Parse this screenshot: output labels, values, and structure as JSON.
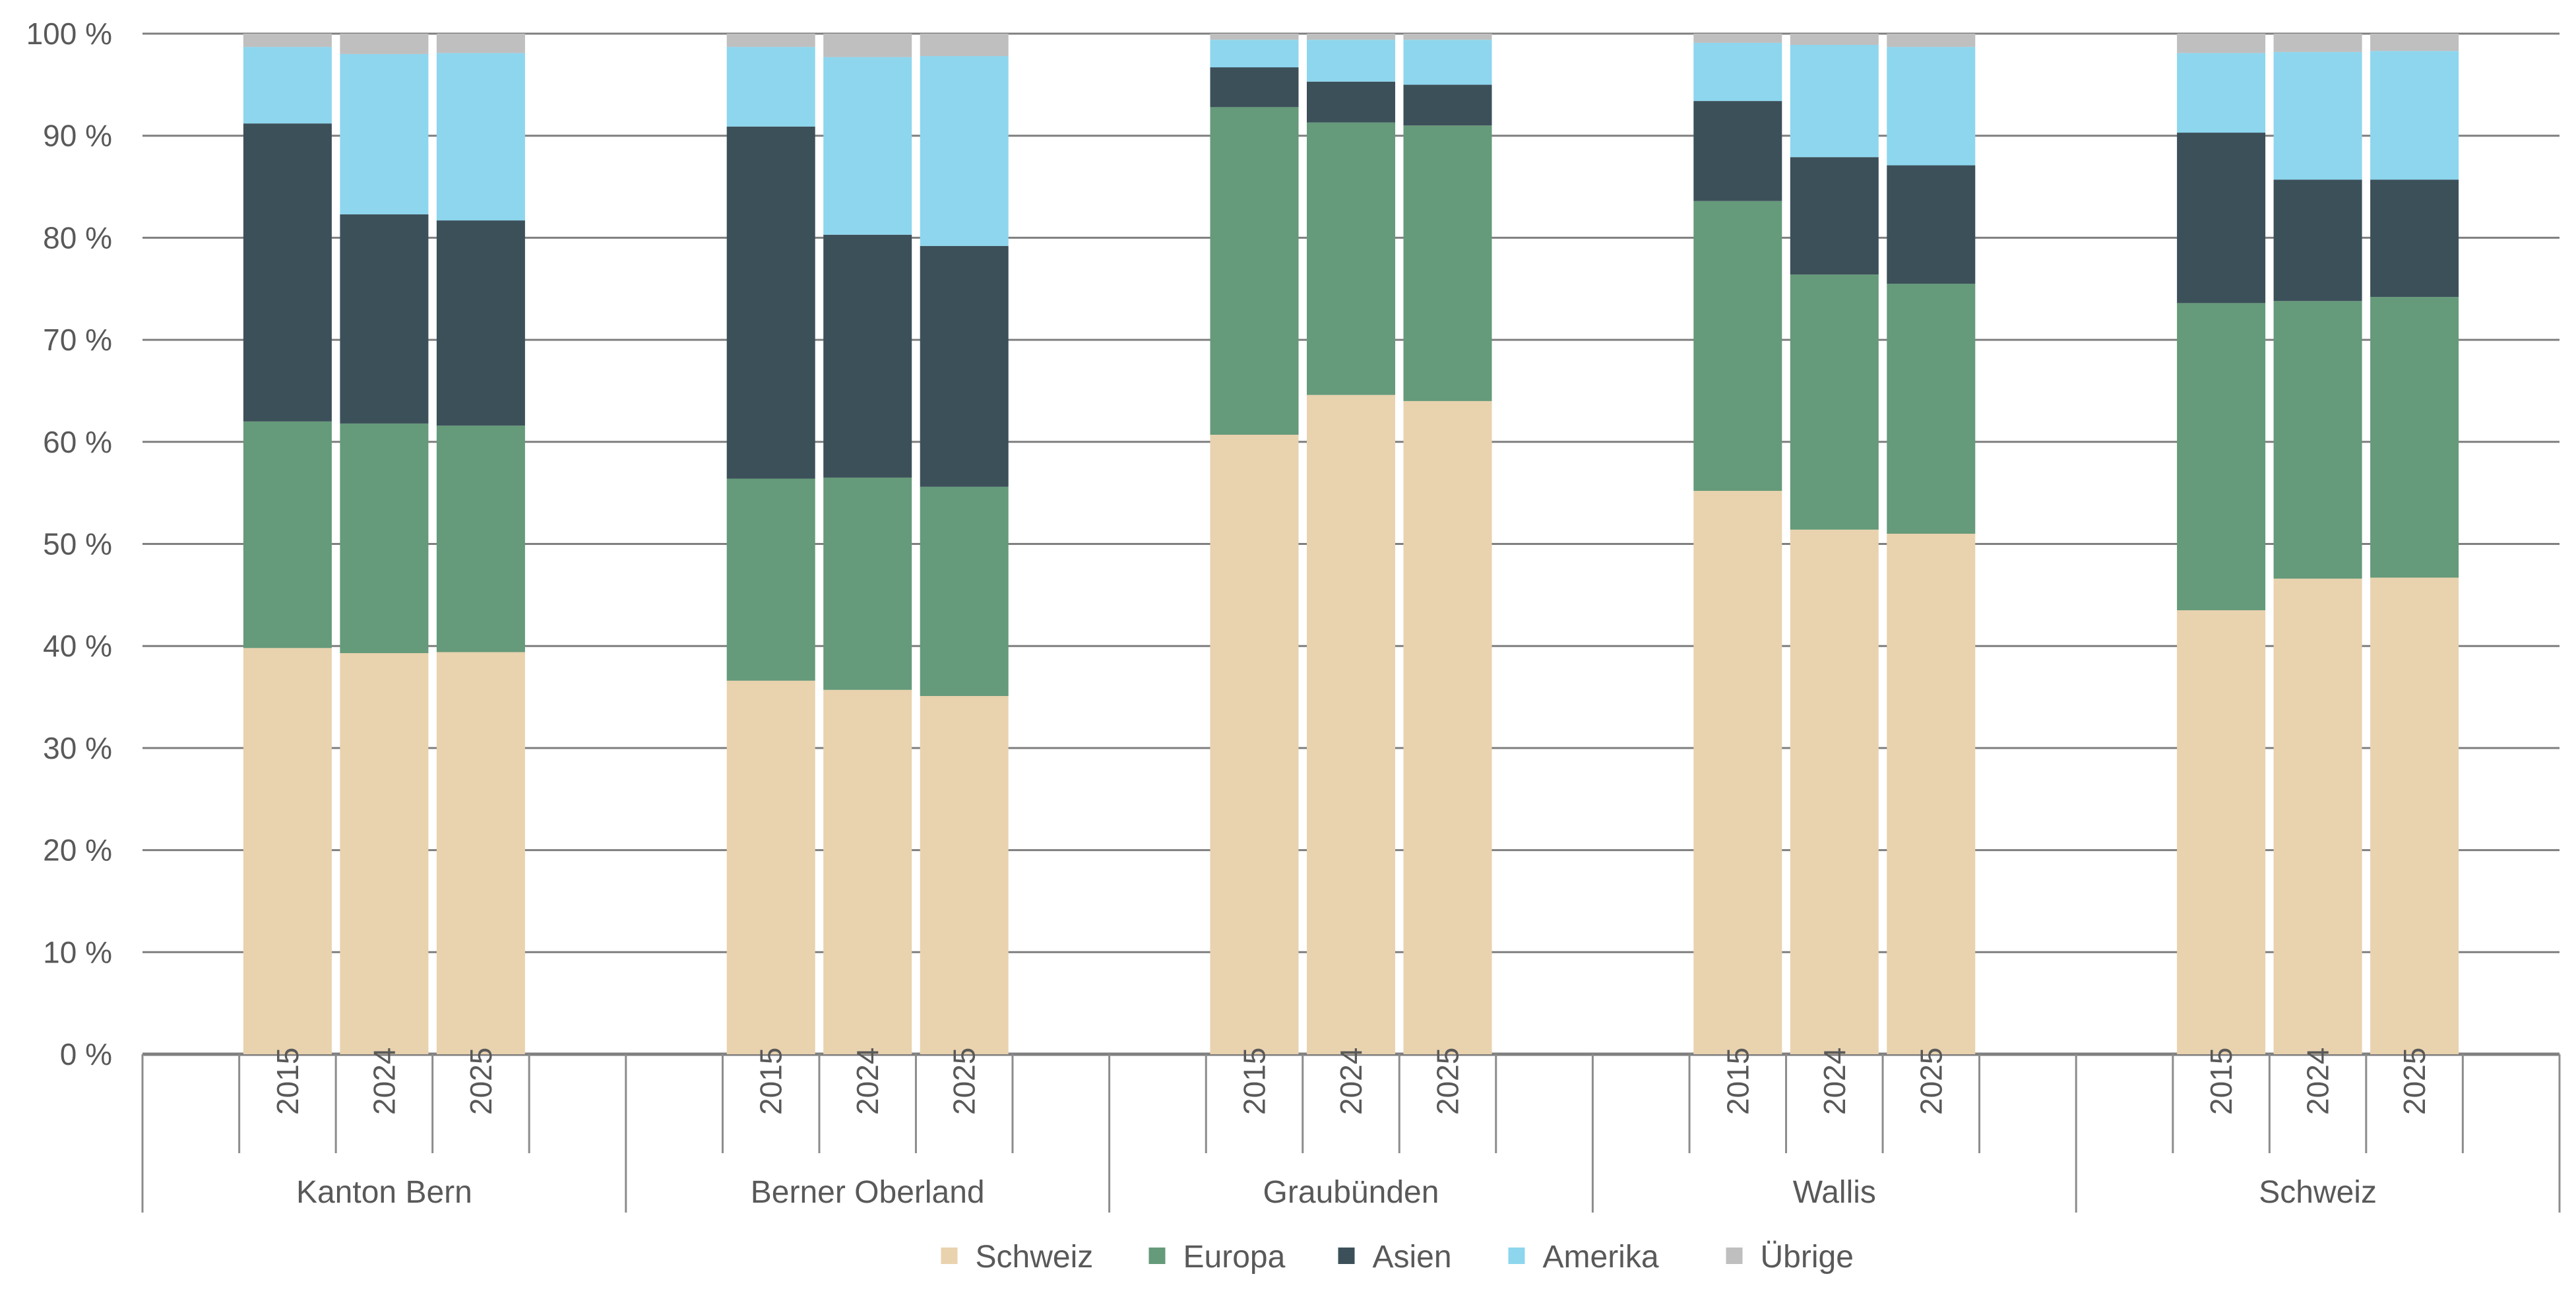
{
  "chart_data": {
    "type": "bar",
    "stacked": true,
    "normalized": true,
    "title": "",
    "xlabel": "",
    "ylabel": "",
    "ylim": [
      0,
      100
    ],
    "y_ticks": [
      0,
      10,
      20,
      30,
      40,
      50,
      60,
      70,
      80,
      90,
      100
    ],
    "y_tick_suffix": " %",
    "grid": true,
    "legend_position": "bottom",
    "groups": [
      {
        "label": "Kanton Bern",
        "years": [
          "2015",
          "2024",
          "2025"
        ]
      },
      {
        "label": "Berner Oberland",
        "years": [
          "2015",
          "2024",
          "2025"
        ]
      },
      {
        "label": "Graubünden",
        "years": [
          "2015",
          "2024",
          "2025"
        ]
      },
      {
        "label": "Wallis",
        "years": [
          "2015",
          "2024",
          "2025"
        ]
      },
      {
        "label": "Schweiz",
        "years": [
          "2015",
          "2024",
          "2025"
        ]
      }
    ],
    "categories": [
      "Kanton Bern 2015",
      "Kanton Bern 2024",
      "Kanton Bern 2025",
      "Berner Oberland 2015",
      "Berner Oberland 2024",
      "Berner Oberland 2025",
      "Graubünden 2015",
      "Graubünden 2024",
      "Graubünden 2025",
      "Wallis 2015",
      "Wallis 2024",
      "Wallis 2025",
      "Schweiz 2015",
      "Schweiz 2024",
      "Schweiz 2025"
    ],
    "series": [
      {
        "name": "Schweiz",
        "color": "#E9D2AE",
        "values": [
          39.8,
          39.3,
          39.4,
          36.6,
          35.7,
          35.1,
          60.7,
          64.6,
          64.0,
          55.2,
          51.4,
          51.0,
          43.5,
          46.6,
          46.7
        ]
      },
      {
        "name": "Europa",
        "color": "#659A7A",
        "values": [
          22.2,
          22.5,
          22.2,
          19.8,
          20.8,
          20.5,
          32.1,
          26.7,
          27.0,
          28.4,
          25.0,
          24.5,
          30.1,
          27.2,
          27.5
        ]
      },
      {
        "name": "Asien",
        "color": "#3C505A",
        "values": [
          29.2,
          20.5,
          20.1,
          34.5,
          23.8,
          23.6,
          3.9,
          4.0,
          4.0,
          9.8,
          11.5,
          11.6,
          16.7,
          11.9,
          11.5
        ]
      },
      {
        "name": "Amerika",
        "color": "#8DD6EE",
        "values": [
          7.5,
          15.7,
          16.4,
          7.8,
          17.4,
          18.6,
          2.7,
          4.1,
          4.4,
          5.7,
          11.0,
          11.6,
          7.8,
          12.5,
          12.6
        ]
      },
      {
        "name": "Übrige",
        "color": "#BFBFBF",
        "values": [
          1.3,
          2.0,
          1.9,
          1.3,
          2.3,
          2.2,
          0.6,
          0.6,
          0.6,
          0.9,
          1.1,
          1.3,
          1.9,
          1.8,
          1.7
        ]
      }
    ]
  }
}
